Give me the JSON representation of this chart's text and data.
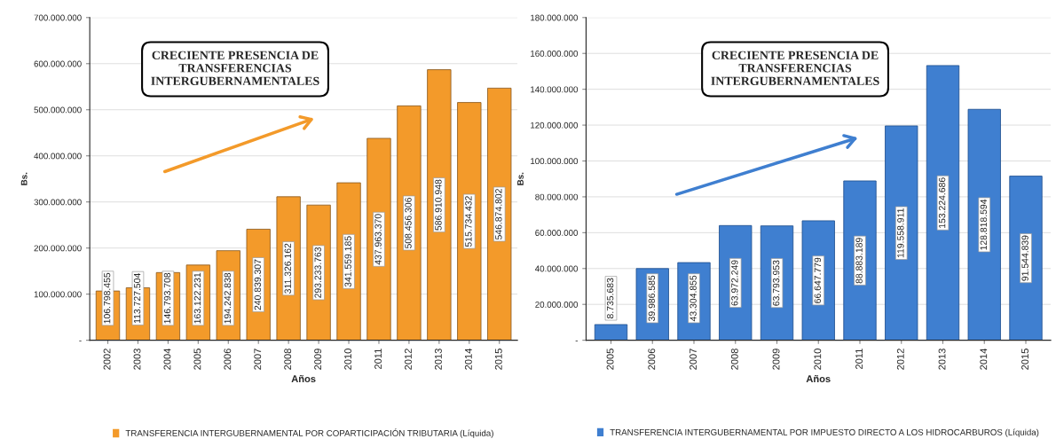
{
  "chart_data": [
    {
      "type": "bar",
      "categories": [
        "2002",
        "2003",
        "2004",
        "2005",
        "2006",
        "2007",
        "2008",
        "2009",
        "2010",
        "2011",
        "2012",
        "2013",
        "2014",
        "2015"
      ],
      "series": [
        {
          "name": "TRANSFERENCIA INTERGUBERNAMENTAL POR COPARTICIPACIÓN TRIBUTARIA (Líquida)",
          "color": "#f39a2a",
          "values": [
            106798455,
            113727504,
            146793708,
            163122231,
            194242838,
            240839307,
            311326162,
            293233763,
            341559185,
            437963370,
            508456306,
            586910948,
            515734432,
            546874802
          ],
          "value_labels": [
            "106.798.455",
            "113.727.504",
            "146.793.708",
            "163.122.231",
            "194.242.838",
            "240.839.307",
            "311.326.162",
            "293.233.763",
            "341.559.185",
            "437.963.370",
            "508.456.306",
            "586.910.948",
            "515.734.432",
            "546.874.802"
          ]
        }
      ],
      "xlabel": "Años",
      "ylabel": "Bs.",
      "ylim": [
        0,
        700000000
      ],
      "yticks": [
        {
          "value": 0,
          "label": "-"
        },
        {
          "value": 100000000,
          "label": "100.000.000"
        },
        {
          "value": 200000000,
          "label": "200.000.000"
        },
        {
          "value": 300000000,
          "label": "300.000.000"
        },
        {
          "value": 400000000,
          "label": "400.000.000"
        },
        {
          "value": 500000000,
          "label": "500.000.000"
        },
        {
          "value": 600000000,
          "label": "600.000.000"
        },
        {
          "value": 700000000,
          "label": "700.000.000"
        }
      ],
      "grid": "y",
      "legend": "bottom",
      "annotations": [
        "CRECIENTE PRESENCIA DE\nTRANSFERENCIAS\nINTERGUBERNAMENTALES"
      ]
    },
    {
      "type": "bar",
      "categories": [
        "2005",
        "2006",
        "2007",
        "2008",
        "2009",
        "2010",
        "2011",
        "2012",
        "2013",
        "2014",
        "2015"
      ],
      "series": [
        {
          "name": "TRANSFERENCIA INTERGUBERNAMENTAL POR IMPUESTO DIRECTO A LOS HIDROCARBUROS (Líquida)",
          "color": "#3f7fd0",
          "values": [
            8735683,
            39986585,
            43304855,
            63972249,
            63793953,
            66647779,
            88883189,
            119558911,
            153224686,
            128818594,
            91544839
          ],
          "value_labels": [
            "8.735.683",
            "39.986.585",
            "43.304.855",
            "63.972.249",
            "63.793.953",
            "66.647.779",
            "88.883.189",
            "119.558.911",
            "153.224.686",
            "128.818.594",
            "91.544.839"
          ]
        }
      ],
      "xlabel": "Años",
      "ylabel": "Bs.",
      "ylim": [
        0,
        180000000
      ],
      "yticks": [
        {
          "value": 0,
          "label": "-"
        },
        {
          "value": 20000000,
          "label": "20.000.000"
        },
        {
          "value": 40000000,
          "label": "40.000.000"
        },
        {
          "value": 60000000,
          "label": "60.000.000"
        },
        {
          "value": 80000000,
          "label": "80.000.000"
        },
        {
          "value": 100000000,
          "label": "100.000.000"
        },
        {
          "value": 120000000,
          "label": "120.000.000"
        },
        {
          "value": 140000000,
          "label": "140.000.000"
        },
        {
          "value": 160000000,
          "label": "160.000.000"
        },
        {
          "value": 180000000,
          "label": "180.000.000"
        }
      ],
      "grid": "y",
      "legend": "bottom",
      "annotations": [
        "CRECIENTE PRESENCIA DE\nTRANSFERENCIAS\nINTERGUBERNAMENTALES"
      ]
    }
  ]
}
